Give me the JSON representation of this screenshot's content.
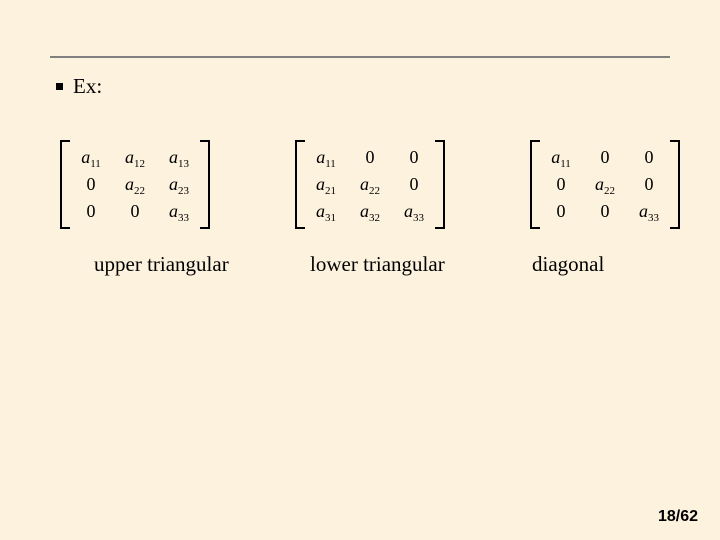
{
  "slide": {
    "background_color": "#fdf2de",
    "divider_color": "#808080",
    "bullet_color": "#000000",
    "text_color": "#000000"
  },
  "header": {
    "bullet_label": "Ex:"
  },
  "matrices": {
    "upper": {
      "rows": [
        [
          {
            "a": "a",
            "s": "11"
          },
          {
            "a": "a",
            "s": "12"
          },
          {
            "a": "a",
            "s": "13"
          }
        ],
        [
          {
            "a": "0",
            "s": ""
          },
          {
            "a": "a",
            "s": "22"
          },
          {
            "a": "a",
            "s": "23"
          }
        ],
        [
          {
            "a": "0",
            "s": ""
          },
          {
            "a": "0",
            "s": ""
          },
          {
            "a": "a",
            "s": "33"
          }
        ]
      ]
    },
    "lower": {
      "rows": [
        [
          {
            "a": "a",
            "s": "11"
          },
          {
            "a": "0",
            "s": ""
          },
          {
            "a": "0",
            "s": ""
          }
        ],
        [
          {
            "a": "a",
            "s": "21"
          },
          {
            "a": "a",
            "s": "22"
          },
          {
            "a": "0",
            "s": ""
          }
        ],
        [
          {
            "a": "a",
            "s": "31"
          },
          {
            "a": "a",
            "s": "32"
          },
          {
            "a": "a",
            "s": "33"
          }
        ]
      ]
    },
    "diag": {
      "rows": [
        [
          {
            "a": "a",
            "s": "11"
          },
          {
            "a": "0",
            "s": ""
          },
          {
            "a": "0",
            "s": ""
          }
        ],
        [
          {
            "a": "0",
            "s": ""
          },
          {
            "a": "a",
            "s": "22"
          },
          {
            "a": "0",
            "s": ""
          }
        ],
        [
          {
            "a": "0",
            "s": ""
          },
          {
            "a": "0",
            "s": ""
          },
          {
            "a": "a",
            "s": "33"
          }
        ]
      ]
    }
  },
  "labels": {
    "upper": "upper triangular",
    "lower": "lower triangular",
    "diag": "diagonal"
  },
  "footer": {
    "page": "18/62"
  }
}
